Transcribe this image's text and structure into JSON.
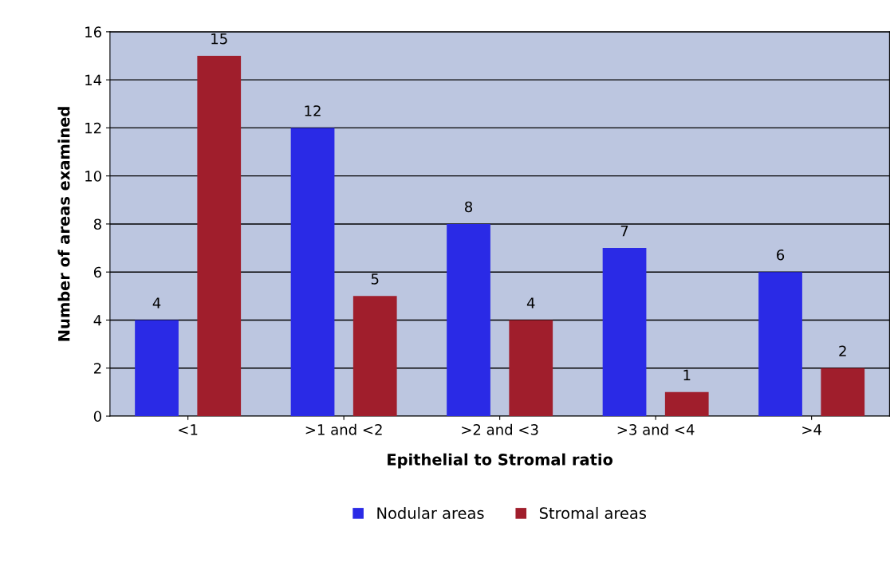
{
  "chart_data": {
    "type": "bar",
    "xlabel": "Epithelial to Stromal ratio",
    "ylabel": "Number of areas examined",
    "categories": [
      "<1",
      ">1 and <2",
      ">2 and <3",
      ">3 and <4",
      ">4"
    ],
    "series": [
      {
        "name": "Nodular areas",
        "color": "#2a2ae6",
        "values": [
          4,
          12,
          8,
          7,
          6
        ]
      },
      {
        "name": "Stromal areas",
        "color": "#a01e2c",
        "values": [
          15,
          5,
          4,
          1,
          2
        ]
      }
    ],
    "ylim": [
      0,
      16
    ],
    "yticks": [
      0,
      2,
      4,
      6,
      8,
      10,
      12,
      14,
      16
    ],
    "grid": "y",
    "legend": "bottom",
    "data_labels": true
  }
}
